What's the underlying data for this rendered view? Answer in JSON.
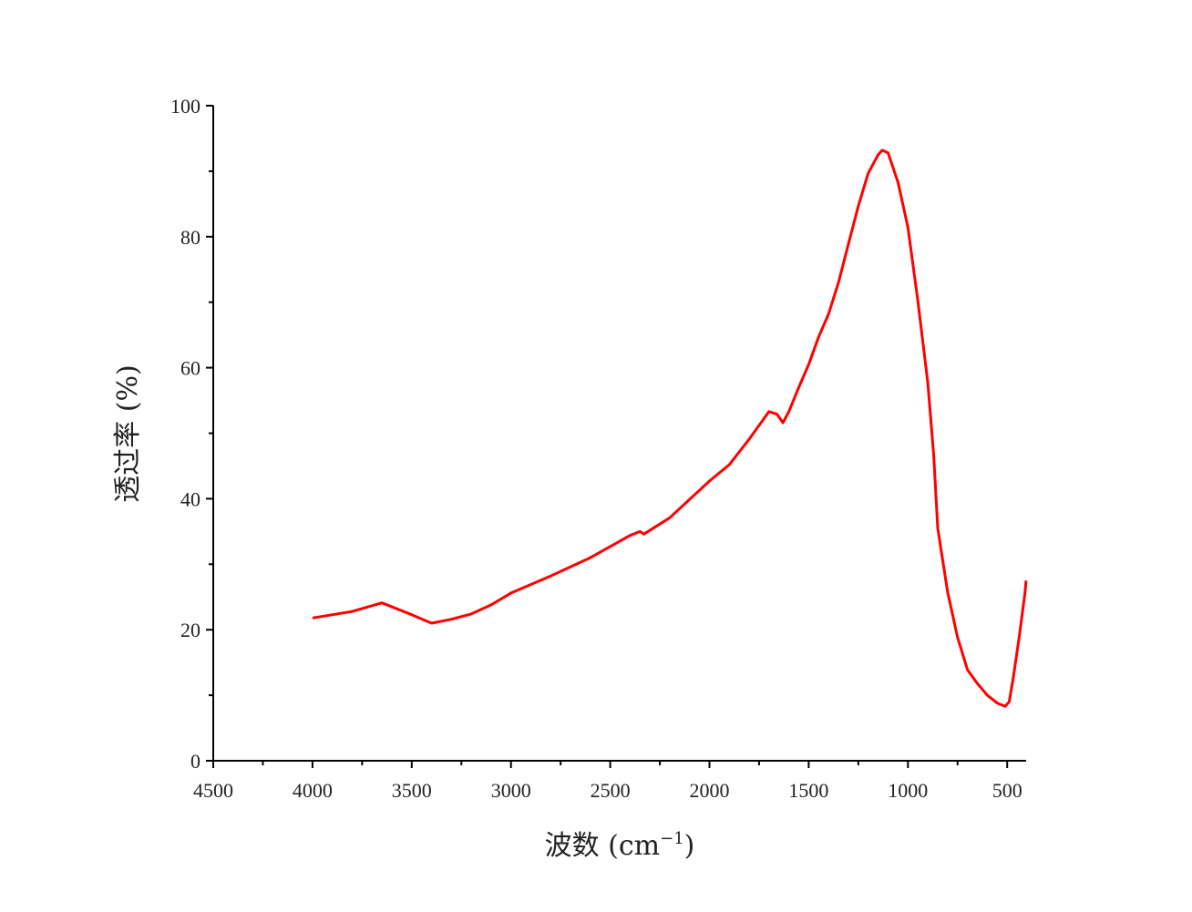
{
  "chart_data": {
    "type": "line",
    "title": "",
    "xlabel": "波数 (cm⁻¹)",
    "xlabel_main": "波数 (cm",
    "xlabel_sup": "−1",
    "xlabel_close": ")",
    "ylabel": "透过率 (%)",
    "xlim": [
      4500,
      400
    ],
    "ylim": [
      0,
      100
    ],
    "x_ticks": [
      4500,
      4000,
      3500,
      3000,
      2500,
      2000,
      1500,
      1000,
      500
    ],
    "y_ticks": [
      0,
      20,
      40,
      60,
      80,
      100
    ],
    "grid": false,
    "line_color": "#ff0000",
    "series": [
      {
        "name": "transmittance",
        "x": [
          4000,
          3800,
          3650,
          3500,
          3400,
          3300,
          3200,
          3100,
          3000,
          2800,
          2600,
          2400,
          2350,
          2330,
          2200,
          2000,
          1900,
          1800,
          1700,
          1660,
          1630,
          1600,
          1550,
          1500,
          1450,
          1400,
          1350,
          1300,
          1250,
          1200,
          1150,
          1130,
          1100,
          1050,
          1000,
          950,
          900,
          870,
          850,
          800,
          750,
          700,
          650,
          600,
          550,
          510,
          490,
          470,
          440,
          410,
          405
        ],
        "y": [
          21.8,
          22.8,
          24.1,
          22.3,
          21.0,
          21.6,
          22.4,
          23.8,
          25.6,
          28.2,
          31.0,
          34.4,
          35.0,
          34.6,
          37.1,
          42.7,
          45.2,
          49.1,
          53.3,
          52.9,
          51.6,
          53.3,
          57.0,
          60.5,
          64.7,
          68.2,
          73.0,
          78.9,
          84.7,
          89.7,
          92.5,
          93.2,
          92.8,
          88.3,
          81.4,
          70.2,
          57.7,
          46.6,
          35.5,
          25.7,
          18.8,
          13.9,
          11.8,
          10.0,
          8.8,
          8.3,
          9.0,
          12.5,
          18.8,
          25.7,
          27.5
        ]
      }
    ]
  }
}
